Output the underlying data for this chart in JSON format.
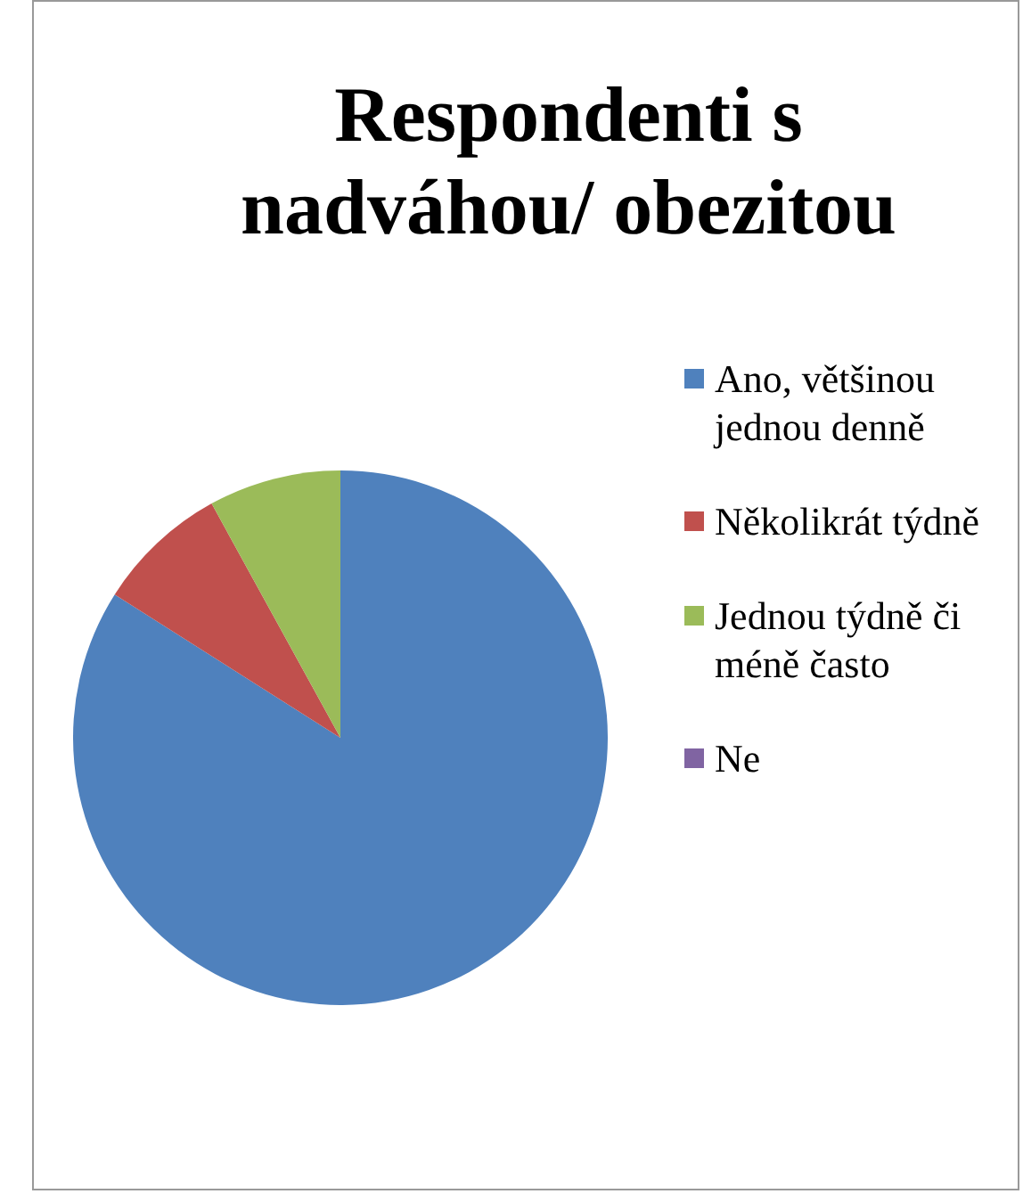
{
  "chart_data": {
    "type": "pie",
    "title": "Respondenti s nadváhou/ obezitou",
    "categories": [
      "Ano, většinou jednou denně",
      "Několikrát týdně",
      "Jednou týdně či méně často",
      "Ne"
    ],
    "values": [
      84,
      8,
      8,
      0
    ],
    "colors": [
      "#4f81bd",
      "#c0504d",
      "#9bbb59",
      "#8064a2"
    ],
    "legend": "right"
  }
}
